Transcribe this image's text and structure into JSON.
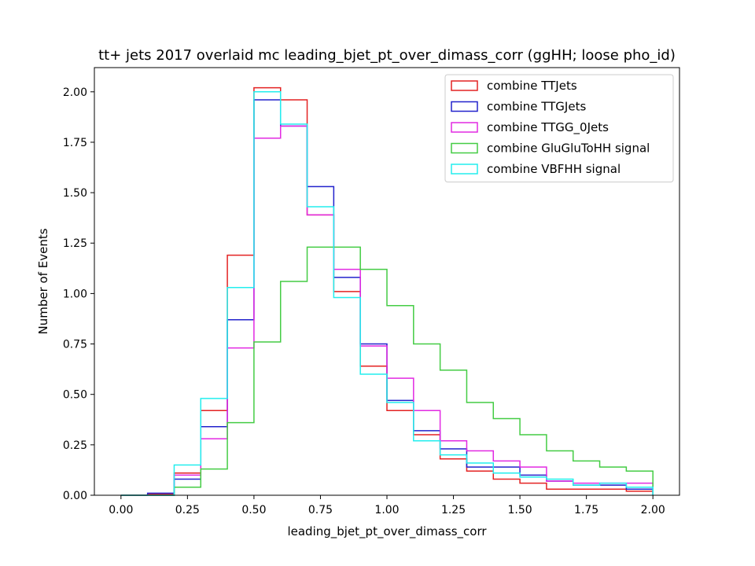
{
  "chart_data": {
    "type": "step-histogram",
    "title": "tt+ jets 2017 overlaid mc leading_bjet_pt_over_dimass_corr (ggHH; loose pho_id)",
    "xlabel": "leading_bjet_pt_over_dimass_corr",
    "ylabel": "Number of Events",
    "xlim": [
      -0.1,
      2.1
    ],
    "ylim": [
      0,
      2.12
    ],
    "xticks": [
      "0.00",
      "0.25",
      "0.50",
      "0.75",
      "1.00",
      "1.25",
      "1.50",
      "1.75",
      "2.00"
    ],
    "yticks": [
      "0.00",
      "0.25",
      "0.50",
      "0.75",
      "1.00",
      "1.25",
      "1.50",
      "1.75",
      "2.00"
    ],
    "grid": false,
    "legend_position": "top-right",
    "bin_edges": [
      0.0,
      0.1,
      0.2,
      0.3,
      0.4,
      0.5,
      0.6,
      0.7,
      0.8,
      0.9,
      1.0,
      1.1,
      1.2,
      1.3,
      1.4,
      1.5,
      1.6,
      1.7,
      1.8,
      1.9,
      2.0
    ],
    "series": [
      {
        "name": "combine TTJets",
        "color": "#e32222",
        "values": [
          0.0,
          0.005,
          0.11,
          0.42,
          1.19,
          2.02,
          1.96,
          1.39,
          1.01,
          0.64,
          0.42,
          0.3,
          0.18,
          0.12,
          0.08,
          0.06,
          0.03,
          0.03,
          0.03,
          0.02
        ]
      },
      {
        "name": "combine TTGJets",
        "color": "#2222cc",
        "values": [
          0.0,
          0.01,
          0.08,
          0.34,
          0.87,
          1.96,
          1.83,
          1.53,
          1.08,
          0.75,
          0.47,
          0.32,
          0.23,
          0.14,
          0.14,
          0.1,
          0.07,
          0.05,
          0.05,
          0.03
        ]
      },
      {
        "name": "combine TTGG_0Jets",
        "color": "#e22ae2",
        "values": [
          0.0,
          0.0,
          0.1,
          0.28,
          0.73,
          1.77,
          1.83,
          1.39,
          1.12,
          0.74,
          0.58,
          0.42,
          0.27,
          0.22,
          0.17,
          0.14,
          0.07,
          0.06,
          0.06,
          0.06
        ]
      },
      {
        "name": "combine GluGluToHH signal",
        "color": "#44cc44",
        "values": [
          0.0,
          0.0,
          0.04,
          0.13,
          0.36,
          0.76,
          1.06,
          1.23,
          1.23,
          1.12,
          0.94,
          0.75,
          0.62,
          0.46,
          0.38,
          0.3,
          0.22,
          0.17,
          0.14,
          0.12
        ]
      },
      {
        "name": "combine VBFHH signal",
        "color": "#22eeee",
        "values": [
          0.0,
          0.0,
          0.15,
          0.48,
          1.03,
          2.0,
          1.84,
          1.43,
          0.98,
          0.6,
          0.46,
          0.27,
          0.2,
          0.16,
          0.11,
          0.09,
          0.08,
          0.05,
          0.06,
          0.04
        ]
      }
    ]
  }
}
